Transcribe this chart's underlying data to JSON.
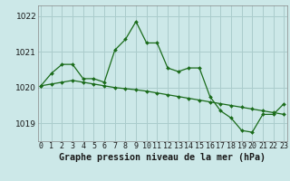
{
  "title": "Graphe pression niveau de la mer (hPa)",
  "bg_color": "#cce8e8",
  "grid_color": "#aacccc",
  "line_color": "#1a6b1a",
  "marker_color": "#1a6b1a",
  "x_labels": [
    "0",
    "1",
    "2",
    "3",
    "4",
    "5",
    "6",
    "7",
    "8",
    "9",
    "10",
    "11",
    "12",
    "13",
    "14",
    "15",
    "16",
    "17",
    "18",
    "19",
    "20",
    "21",
    "22",
    "23"
  ],
  "hours": [
    0,
    1,
    2,
    3,
    4,
    5,
    6,
    7,
    8,
    9,
    10,
    11,
    12,
    13,
    14,
    15,
    16,
    17,
    18,
    19,
    20,
    21,
    22,
    23
  ],
  "series1": [
    1020.05,
    1020.4,
    1020.65,
    1020.65,
    1020.25,
    1020.25,
    1020.15,
    1021.05,
    1021.35,
    1021.85,
    1021.25,
    1021.25,
    1020.55,
    1020.45,
    1020.55,
    1020.55,
    1019.75,
    1019.35,
    1019.15,
    1018.8,
    1018.75,
    1019.25,
    1019.25,
    1019.55
  ],
  "series2": [
    1020.05,
    1020.1,
    1020.15,
    1020.2,
    1020.15,
    1020.1,
    1020.05,
    1020.0,
    1019.97,
    1019.94,
    1019.9,
    1019.85,
    1019.8,
    1019.75,
    1019.7,
    1019.65,
    1019.6,
    1019.55,
    1019.5,
    1019.45,
    1019.4,
    1019.35,
    1019.3,
    1019.25
  ],
  "ylim": [
    1018.5,
    1022.3
  ],
  "yticks": [
    1019,
    1020,
    1021,
    1022
  ],
  "ylabel_fontsize": 6.5,
  "xlabel_fontsize": 6,
  "title_fontsize": 7.2
}
